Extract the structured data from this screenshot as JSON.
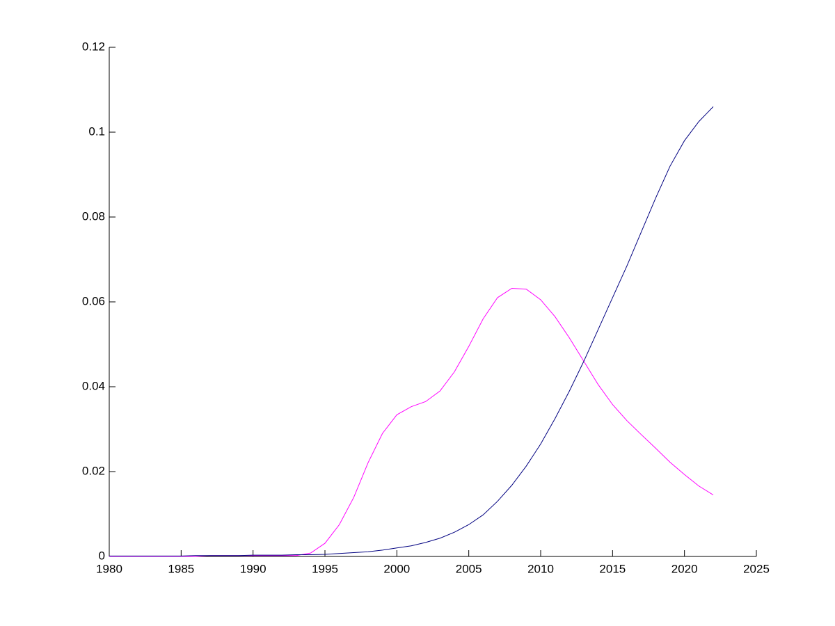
{
  "chart_data": {
    "type": "line",
    "x": [
      1980,
      1981,
      1982,
      1983,
      1984,
      1985,
      1986,
      1987,
      1988,
      1989,
      1990,
      1991,
      1992,
      1993,
      1994,
      1995,
      1996,
      1997,
      1998,
      1999,
      2000,
      2001,
      2002,
      2003,
      2004,
      2005,
      2006,
      2007,
      2008,
      2009,
      2010,
      2011,
      2012,
      2013,
      2014,
      2015,
      2016,
      2017,
      2018,
      2019,
      2020,
      2021,
      2022
    ],
    "series": [
      {
        "color": "#ff00ff",
        "values": [
          0,
          0,
          0,
          0,
          0,
          0,
          0,
          0.0002,
          0.0002,
          0.0002,
          0.0002,
          0.0002,
          0.0002,
          0.0002,
          0.0008,
          0.0031,
          0.0075,
          0.0139,
          0.0221,
          0.029,
          0.0334,
          0.0353,
          0.0365,
          0.039,
          0.0435,
          0.0495,
          0.056,
          0.061,
          0.0632,
          0.063,
          0.0605,
          0.0565,
          0.0515,
          0.046,
          0.0405,
          0.0358,
          0.032,
          0.0287,
          0.0255,
          0.0222,
          0.0193,
          0.0166,
          0.0145
        ]
      },
      {
        "color": "#000080",
        "values": [
          0.0001,
          0.0001,
          0.0001,
          0.0001,
          0.0001,
          0.0001,
          0.0002,
          0.0002,
          0.0002,
          0.0002,
          0.0003,
          0.0003,
          0.0003,
          0.0004,
          0.0004,
          0.0005,
          0.0007,
          0.0009,
          0.0011,
          0.0015,
          0.002,
          0.0025,
          0.0033,
          0.0043,
          0.0057,
          0.0075,
          0.0098,
          0.013,
          0.0168,
          0.0213,
          0.0265,
          0.0325,
          0.039,
          0.046,
          0.0535,
          0.061,
          0.0685,
          0.0765,
          0.0845,
          0.092,
          0.098,
          0.1025,
          0.106
        ]
      }
    ],
    "xlim": [
      1980,
      2025
    ],
    "xticks": [
      1980,
      1985,
      1990,
      1995,
      2000,
      2005,
      2010,
      2015,
      2020,
      2025
    ],
    "ylim": [
      0,
      0.12
    ],
    "yticks": [
      0,
      0.02,
      0.04,
      0.06,
      0.08,
      0.1,
      0.12
    ]
  }
}
